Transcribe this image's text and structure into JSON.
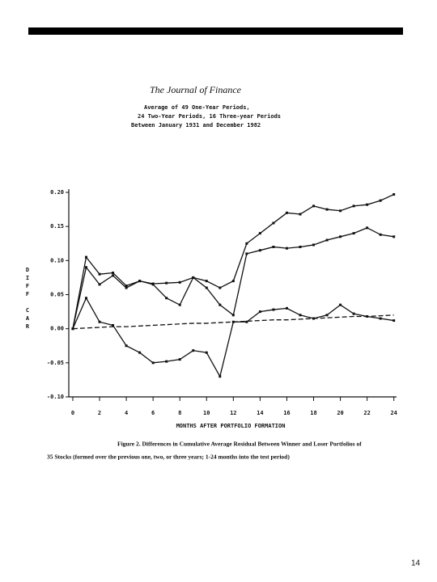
{
  "journal": "The Journal of Finance",
  "caption": [
    "Figure 2. Differences in Cumulative Average Residual Between Winner and Loser Portfolios of",
    "35 Stocks (formed over the previous one, two, or three years; 1-24 months into the test period)"
  ],
  "page_number": "14",
  "chart_data": {
    "type": "line",
    "title": [
      "Average of 49 One-Year Periods,",
      "24 Two-Year Periods, 16 Three-year Periods",
      "Between January 1931 and December 1982"
    ],
    "x_label": "MONTHS AFTER PORTFOLIO FORMATION",
    "y_label": "DIFF CAR",
    "x": [
      0,
      1,
      2,
      3,
      4,
      5,
      6,
      7,
      8,
      9,
      10,
      11,
      12,
      13,
      14,
      15,
      16,
      17,
      18,
      19,
      20,
      21,
      22,
      23,
      24
    ],
    "xlim": [
      -0.3,
      24.2
    ],
    "xticks": [
      0,
      2,
      4,
      6,
      8,
      10,
      12,
      14,
      16,
      18,
      20,
      22,
      24
    ],
    "ylim": [
      -0.1,
      0.2
    ],
    "yticks": [
      {
        "value": 0.2,
        "label": "0.20"
      },
      {
        "value": 0.15,
        "label": "0.15"
      },
      {
        "value": 0.1,
        "label": "0.10"
      },
      {
        "value": 0.05,
        "label": "0.05"
      },
      {
        "value": 0,
        "label": "0.00"
      },
      {
        "value": -0.05,
        "label": "-0.05"
      },
      {
        "value": -0.1,
        "label": "-0.10"
      }
    ],
    "series": [
      {
        "color": "#111111",
        "dashed": false,
        "values": [
          0,
          0.105,
          0.08,
          0.082,
          0.063,
          0.07,
          0.066,
          0.067,
          0.068,
          0.075,
          0.07,
          0.06,
          0.07,
          0.125,
          0.14,
          0.155,
          0.17,
          0.168,
          0.18,
          0.175,
          0.173,
          0.18,
          0.182,
          0.188,
          0.197
        ]
      },
      {
        "color": "#111111",
        "dashed": false,
        "values": [
          0,
          0.09,
          0.065,
          0.078,
          0.06,
          0.07,
          0.065,
          0.045,
          0.035,
          0.075,
          0.06,
          0.035,
          0.02,
          0.11,
          0.115,
          0.12,
          0.118,
          0.12,
          0.123,
          0.13,
          0.135,
          0.14,
          0.148,
          0.138,
          0.135
        ]
      },
      {
        "color": "#111111",
        "dashed": false,
        "values": [
          0,
          0.045,
          0.01,
          0.005,
          -0.025,
          -0.035,
          -0.05,
          -0.048,
          -0.045,
          -0.032,
          -0.035,
          -0.07,
          0.01,
          0.01,
          0.025,
          0.028,
          0.03,
          0.02,
          0.015,
          0.02,
          0.035,
          0.022,
          0.018,
          0.015,
          0.012
        ]
      },
      {
        "color": "#111111",
        "dashed": true,
        "values": [
          0,
          0.001,
          0.002,
          0.003,
          0.003,
          0.004,
          0.005,
          0.006,
          0.007,
          0.008,
          0.008,
          0.009,
          0.01,
          0.011,
          0.012,
          0.013,
          0.013,
          0.014,
          0.015,
          0.016,
          0.017,
          0.018,
          0.018,
          0.019,
          0.02
        ]
      }
    ]
  }
}
